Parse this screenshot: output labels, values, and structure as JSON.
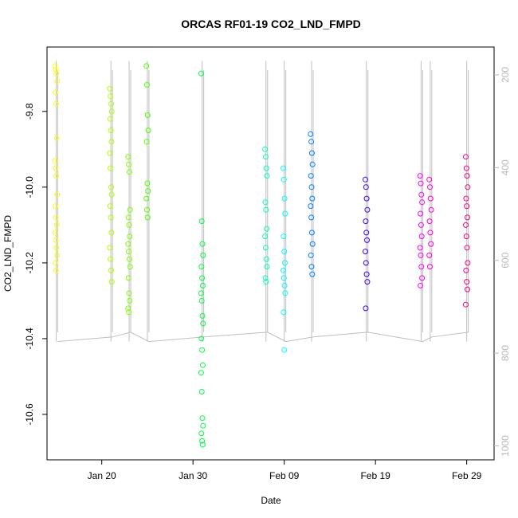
{
  "chart_data": {
    "type": "scatter",
    "title": "ORCAS RF01-19 CO2_LND_FMPD",
    "xlabel": "Date",
    "ylabel": "CO2_LND_FMPD",
    "xlim": [
      "2016-01-14",
      "2016-03-03"
    ],
    "ylim": [
      -10.72,
      -9.63
    ],
    "xticks": [
      "Jan 20",
      "Jan 30",
      "Feb 09",
      "Feb 19",
      "Feb 29"
    ],
    "yticks": [
      "-9.8",
      "-10.0",
      "-10.2",
      "-10.4",
      "-10.6"
    ],
    "y2lim": [
      1030,
      140
    ],
    "y2ticks": [
      "200",
      "400",
      "600",
      "800",
      "1000"
    ],
    "secondary_line_color": "#bebebe",
    "flights": [
      {
        "date": "2016-01-15",
        "color": "#ffff00",
        "y": [
          -9.68,
          -9.69,
          -9.7,
          -9.72,
          -9.75,
          -9.78,
          -9.87,
          -9.93,
          -9.95,
          -9.97,
          -10.02,
          -10.05,
          -10.08,
          -10.1,
          -10.12,
          -10.14,
          -10.16,
          -10.18,
          -10.2,
          -10.22
        ]
      },
      {
        "date": "2016-01-21",
        "color": "#b2ff00",
        "y": [
          -9.74,
          -9.76,
          -9.78,
          -9.8,
          -9.82,
          -9.85,
          -9.88,
          -9.91,
          -9.95,
          -10.0,
          -10.02,
          -10.05,
          -10.08,
          -10.12,
          -10.16,
          -10.19,
          -10.22,
          -10.25
        ]
      },
      {
        "date": "2016-01-23",
        "color": "#80ff00",
        "y": [
          -9.92,
          -9.94,
          -9.96,
          -10.06,
          -10.08,
          -10.1,
          -10.13,
          -10.15,
          -10.17,
          -10.19,
          -10.21,
          -10.24,
          -10.28,
          -10.3,
          -10.32,
          -10.33
        ]
      },
      {
        "date": "2016-01-25",
        "color": "#4dff00",
        "y": [
          -9.68,
          -9.73,
          -9.81,
          -9.85,
          -9.88,
          -9.99,
          -10.01,
          -10.03,
          -10.06,
          -10.08
        ]
      },
      {
        "date": "2016-01-31",
        "color": "#00ff40",
        "y": [
          -9.7,
          -10.09,
          -10.15,
          -10.18,
          -10.21,
          -10.24,
          -10.26,
          -10.28,
          -10.3,
          -10.34,
          -10.36,
          -10.4,
          -10.43,
          -10.47,
          -10.49,
          -10.54,
          -10.61,
          -10.63,
          -10.65,
          -10.67,
          -10.68
        ]
      },
      {
        "date": "2016-02-07",
        "color": "#00ffbf",
        "y": [
          -9.9,
          -9.92,
          -9.95,
          -9.97,
          -10.04,
          -10.06,
          -10.11,
          -10.13,
          -10.16,
          -10.19,
          -10.21,
          -10.24,
          -10.25
        ]
      },
      {
        "date": "2016-02-09",
        "color": "#00ffff",
        "y": [
          -9.95,
          -9.98,
          -10.03,
          -10.07,
          -10.13,
          -10.17,
          -10.2,
          -10.22,
          -10.24,
          -10.26,
          -10.28,
          -10.33,
          -10.43
        ]
      },
      {
        "date": "2016-02-12",
        "color": "#0080ff",
        "y": [
          -9.86,
          -9.88,
          -9.91,
          -9.94,
          -9.97,
          -10.0,
          -10.03,
          -10.05,
          -10.08,
          -10.12,
          -10.15,
          -10.18,
          -10.21,
          -10.23
        ]
      },
      {
        "date": "2016-02-18",
        "color": "#4000ff",
        "y": [
          -9.98,
          -10.0,
          -10.03,
          -10.06,
          -10.09,
          -10.12,
          -10.14,
          -10.17,
          -10.2,
          -10.23,
          -10.25,
          -10.32
        ]
      },
      {
        "date": "2016-02-24",
        "color": "#ff00ff",
        "y": [
          -9.97,
          -9.99,
          -10.02,
          -10.04,
          -10.07,
          -10.1,
          -10.13,
          -10.16,
          -10.18,
          -10.21,
          -10.24,
          -10.26
        ]
      },
      {
        "date": "2016-02-25",
        "color": "#ff00ce",
        "y": [
          -9.98,
          -10.0,
          -10.03,
          -10.06,
          -10.09,
          -10.12,
          -10.15,
          -10.18,
          -10.21
        ]
      },
      {
        "date": "2016-02-29",
        "color": "#ff0080",
        "y": [
          -9.92,
          -9.95,
          -9.97,
          -10.0,
          -10.03,
          -10.05,
          -10.08,
          -10.1,
          -10.13,
          -10.16,
          -10.2,
          -10.22,
          -10.25,
          -10.27,
          -10.31
        ]
      }
    ],
    "grid": false,
    "legend": "none"
  }
}
